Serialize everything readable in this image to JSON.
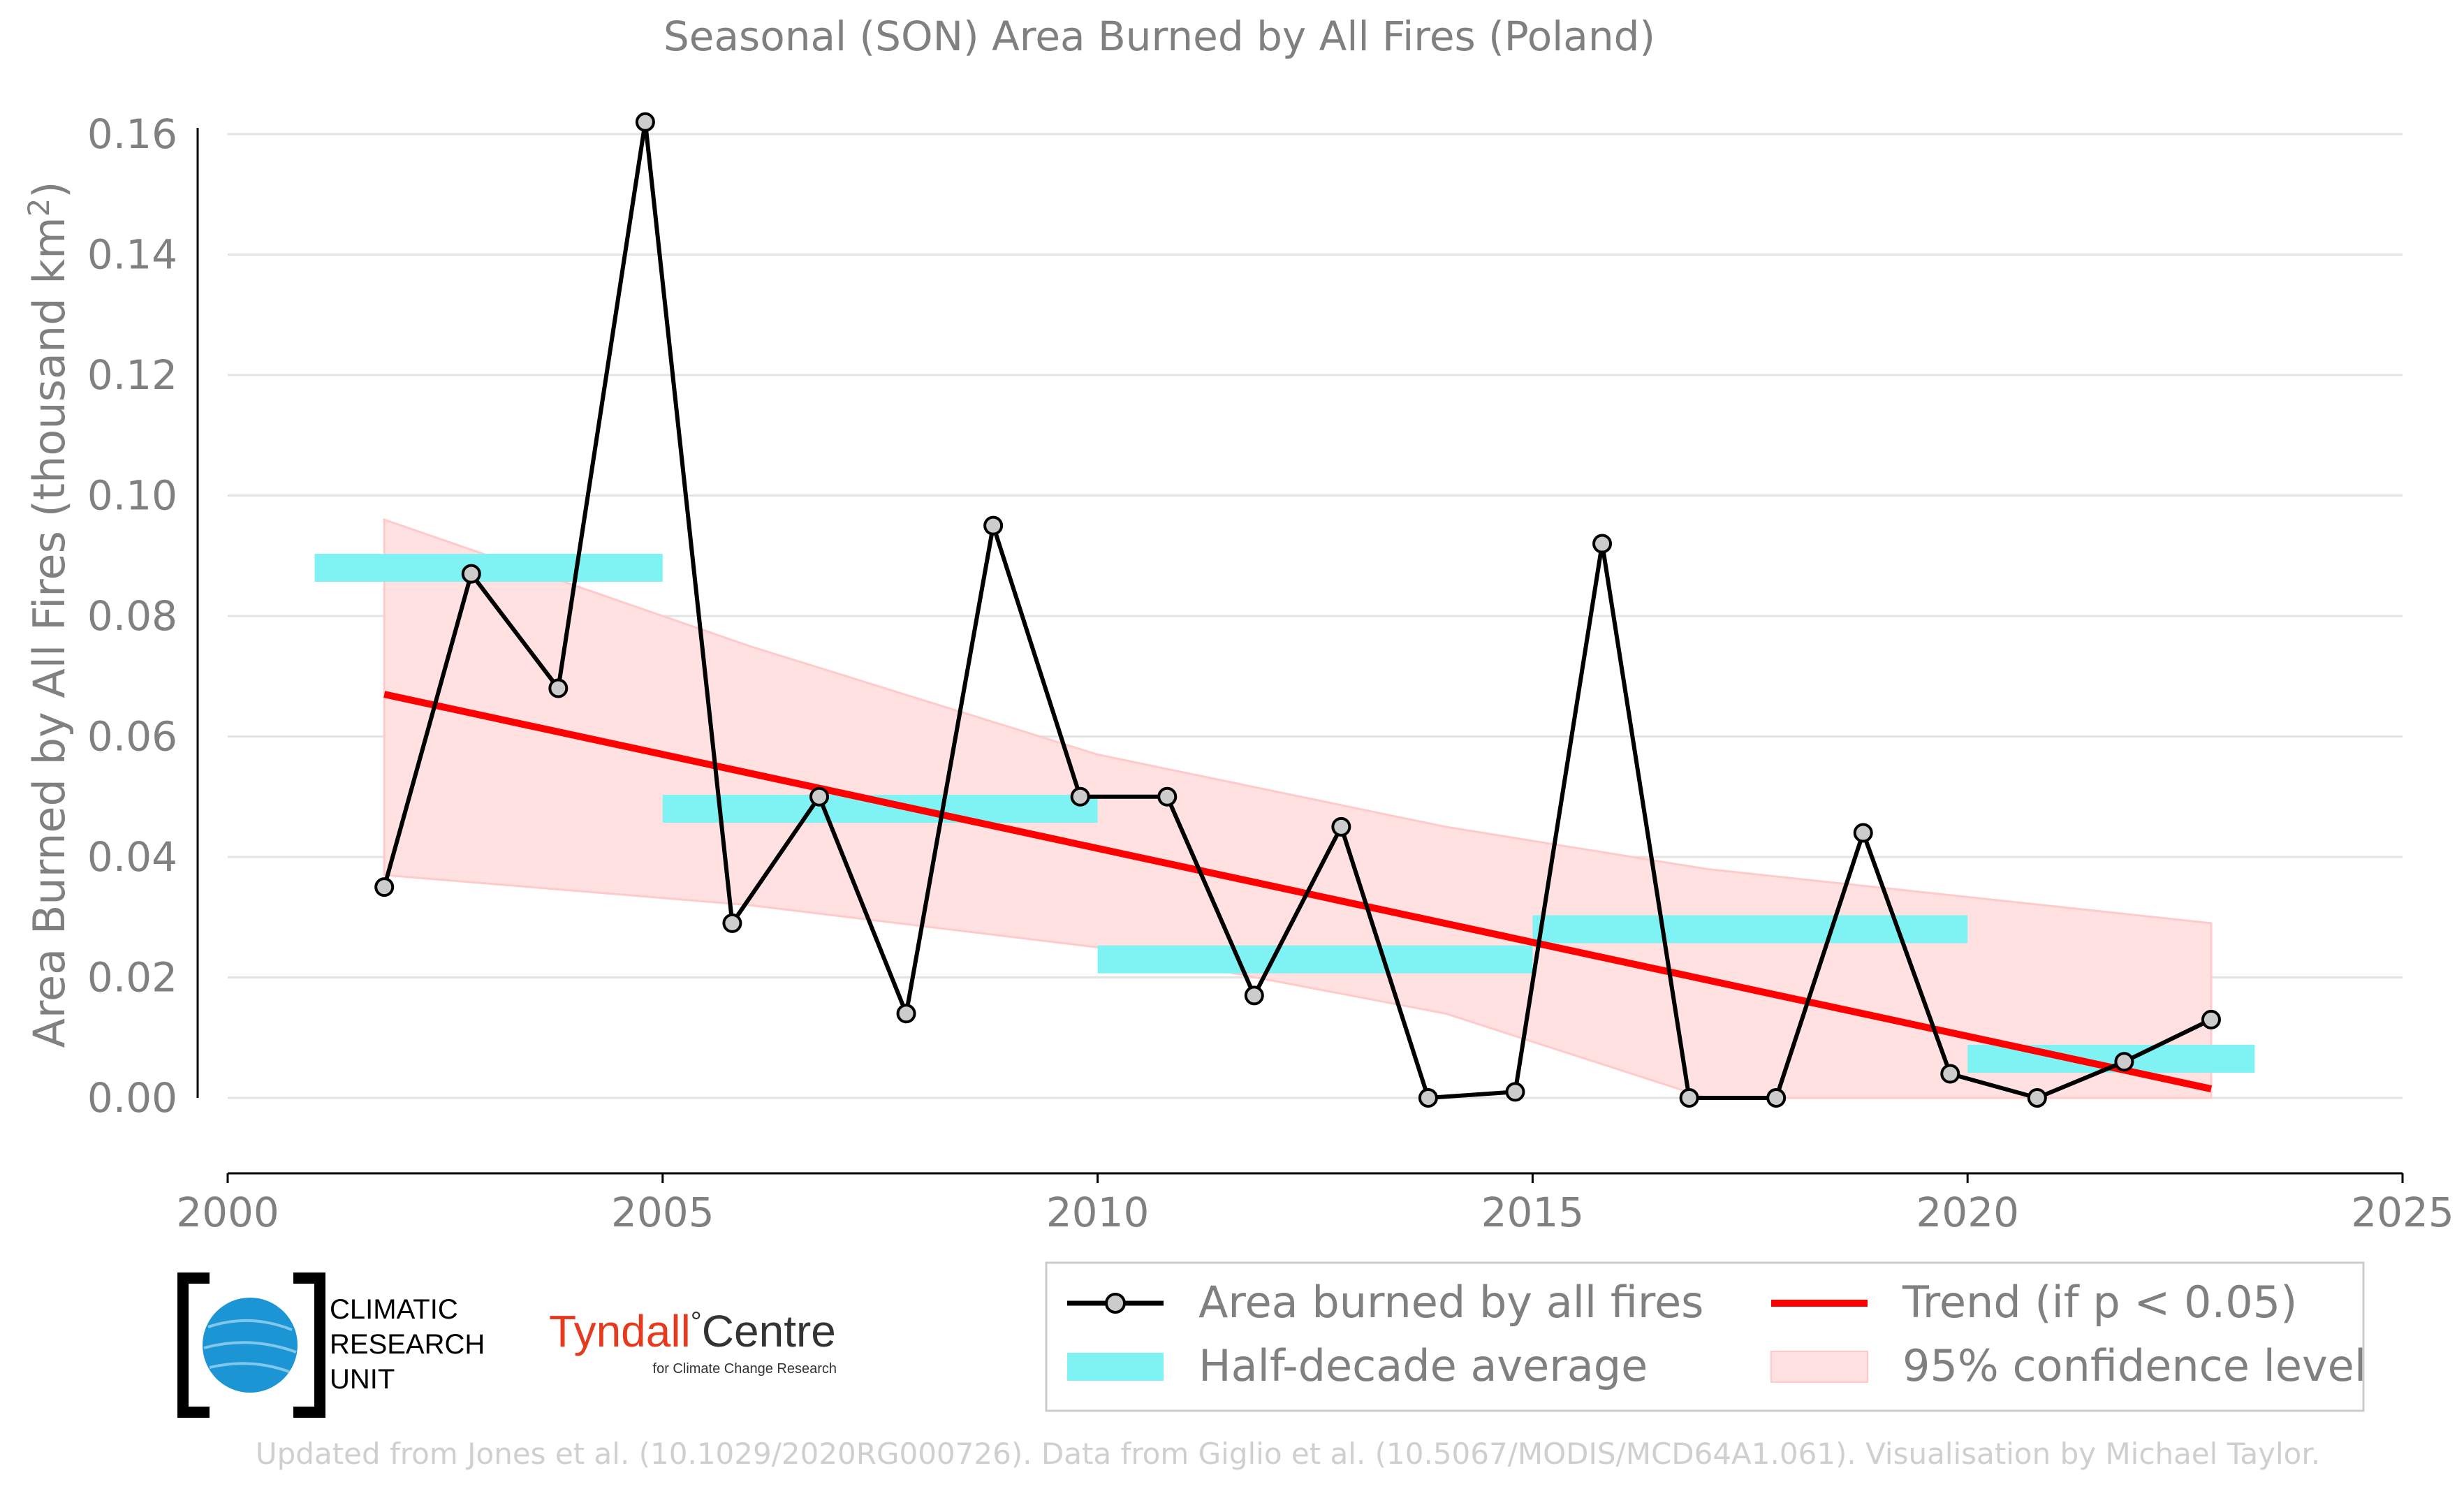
{
  "chart_data": {
    "type": "line",
    "title": "Seasonal (SON) Area Burned by All Fires (Poland)",
    "ylabel": "Area Burned by All Fires (thousand km²)",
    "ylabel_main": "Area Burned by All Fires (thousand km",
    "ylabel_sup": "2",
    "ylabel_end": ")",
    "xlabel": "",
    "xlim": [
      2000,
      2025
    ],
    "ylim": [
      -0.013,
      0.162
    ],
    "x_ticks": [
      2000,
      2005,
      2010,
      2015,
      2020,
      2025
    ],
    "y_ticks": [
      0.0,
      0.02,
      0.04,
      0.06,
      0.08,
      0.1,
      0.12,
      0.14,
      0.16
    ],
    "grid": "horizontal",
    "series": [
      {
        "name": "Area burned by all fires",
        "color": "#000000",
        "marker_fill": "#cccccc",
        "x": [
          2001.8,
          2002.8,
          2003.8,
          2004.8,
          2005.8,
          2006.8,
          2007.8,
          2008.8,
          2009.8,
          2010.8,
          2011.8,
          2012.8,
          2013.8,
          2014.8,
          2015.8,
          2016.8,
          2017.8,
          2018.8,
          2019.8,
          2020.8,
          2021.8,
          2022.8
        ],
        "values": [
          0.035,
          0.087,
          0.068,
          0.162,
          0.029,
          0.05,
          0.014,
          0.095,
          0.05,
          0.05,
          0.017,
          0.045,
          0.0,
          0.001,
          0.092,
          0.0,
          0.0,
          0.044,
          0.004,
          0.0,
          0.006,
          0.013
        ]
      }
    ],
    "half_decade_average": {
      "name": "Half-decade average",
      "color": "#00ffff",
      "segments": [
        {
          "x0": 2001,
          "x1": 2005,
          "value": 0.088
        },
        {
          "x0": 2005,
          "x1": 2010,
          "value": 0.048
        },
        {
          "x0": 2010,
          "x1": 2015,
          "value": 0.023
        },
        {
          "x0": 2015,
          "x1": 2020,
          "value": 0.028
        },
        {
          "x0": 2020,
          "x1": 2023.3,
          "value": 0.0065
        }
      ]
    },
    "trend": {
      "name": "Trend (if p < 0.05)",
      "color": "#ff0000",
      "x": [
        2001.8,
        2022.8
      ],
      "values": [
        0.067,
        0.0015
      ]
    },
    "confidence_band": {
      "name": "95% confidence level",
      "color": "#ffcccc",
      "x": [
        2001.8,
        2006,
        2010,
        2014,
        2017,
        2022.8
      ],
      "upper": [
        0.096,
        0.075,
        0.057,
        0.045,
        0.038,
        0.029
      ],
      "lower": [
        0.037,
        0.032,
        0.025,
        0.014,
        0.0,
        0.0
      ]
    },
    "legend_position": "bottom-right"
  },
  "legend": {
    "line_label": "Area burned by all fires",
    "halfdecade_label": "Half-decade average",
    "trend_label": "Trend (if p < 0.05)",
    "ci_label": "95% confidence level"
  },
  "logos": {
    "cru_line1": "CLIMATIC",
    "cru_line2": "RESEARCH",
    "cru_line3": "UNIT",
    "tyndall_main": "Tyndall",
    "tyndall_degree": "°",
    "tyndall_centre": "Centre",
    "tyndall_sub": "for Climate Change Research"
  },
  "footer": "Updated from Jones et al. (10.1029/2020RG000726). Data from Giglio et al. (10.5067/MODIS/MCD64A1.061). Visualisation by Michael Taylor."
}
